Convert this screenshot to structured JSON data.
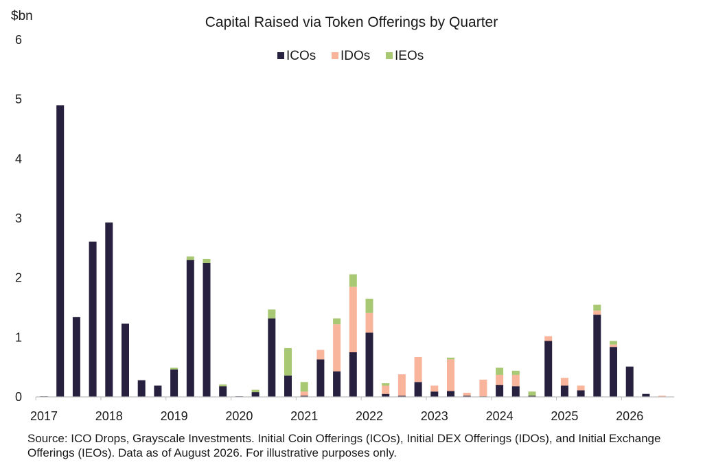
{
  "chart_data": {
    "type": "bar",
    "stacked": true,
    "title": "Capital Raised via Token Offerings by Quarter",
    "ylabel": "$bn",
    "ylim": [
      0,
      6
    ],
    "yticks": [
      0,
      1,
      2,
      3,
      4,
      5,
      6
    ],
    "x_tick_labels": [
      "2017",
      "2018",
      "2019",
      "2020",
      "2021",
      "2022",
      "2023",
      "2024",
      "2025",
      "2026"
    ],
    "legend_position": "top-center",
    "grid": false,
    "categories": [
      "2017 Q1",
      "2017 Q2",
      "2017 Q3",
      "2017 Q4",
      "2018 Q1",
      "2018 Q2",
      "2018 Q3",
      "2018 Q4",
      "2019 Q1",
      "2019 Q2",
      "2019 Q3",
      "2019 Q4",
      "2020 Q1",
      "2020 Q2",
      "2020 Q3",
      "2020 Q4",
      "2021 Q1",
      "2021 Q2",
      "2021 Q3",
      "2021 Q4",
      "2022 Q1",
      "2022 Q2",
      "2022 Q3",
      "2022 Q4",
      "2023 Q1",
      "2023 Q2",
      "2023 Q3",
      "2023 Q4",
      "2024 Q1",
      "2024 Q2",
      "2024 Q3",
      "2024 Q4",
      "2025 Q1",
      "2025 Q2",
      "2025 Q3",
      "2025 Q4",
      "2026 Q1",
      "2026 Q2",
      "2026 Q3",
      "2026 Q4"
    ],
    "series": [
      {
        "name": "ICOs",
        "color": "#27213f",
        "values": [
          0.01,
          4.9,
          1.34,
          2.61,
          2.93,
          1.23,
          0.28,
          0.19,
          0.46,
          2.3,
          2.25,
          0.18,
          0.01,
          0.08,
          1.32,
          0.36,
          0.02,
          0.63,
          0.43,
          0.75,
          1.08,
          0.05,
          0.02,
          0.25,
          0.09,
          0.1,
          0.02,
          0.01,
          0.2,
          0.18,
          0.02,
          0.94,
          0.19,
          0.11,
          1.38,
          0.84,
          0.51,
          0.05,
          0.0,
          0.0
        ]
      },
      {
        "name": "IDOs",
        "color": "#f8b59b",
        "values": [
          0.0,
          0.0,
          0.0,
          0.0,
          0.0,
          0.0,
          0.0,
          0.0,
          0.0,
          0.0,
          0.0,
          0.0,
          0.0,
          0.0,
          0.0,
          0.0,
          0.07,
          0.16,
          0.79,
          1.1,
          0.33,
          0.14,
          0.36,
          0.42,
          0.1,
          0.53,
          0.05,
          0.28,
          0.17,
          0.19,
          0.0,
          0.08,
          0.13,
          0.08,
          0.07,
          0.04,
          0.0,
          0.0,
          0.02,
          0.0
        ]
      },
      {
        "name": "IEOs",
        "color": "#a8c873",
        "values": [
          0.0,
          0.0,
          0.0,
          0.0,
          0.0,
          0.0,
          0.0,
          0.0,
          0.03,
          0.06,
          0.07,
          0.03,
          0.0,
          0.04,
          0.15,
          0.46,
          0.16,
          0.0,
          0.1,
          0.21,
          0.24,
          0.04,
          0.0,
          0.0,
          0.0,
          0.03,
          0.0,
          0.0,
          0.12,
          0.07,
          0.07,
          0.0,
          0.0,
          0.0,
          0.1,
          0.06,
          0.0,
          0.0,
          0.0,
          0.0
        ]
      }
    ]
  },
  "source_note": "Source: ICO Drops, Grayscale Investments. Initial Coin Offerings (ICOs), Initial DEX Offerings (IDOs), and Initial Exchange Offerings (IEOs). Data as of August 2026. For illustrative purposes only."
}
